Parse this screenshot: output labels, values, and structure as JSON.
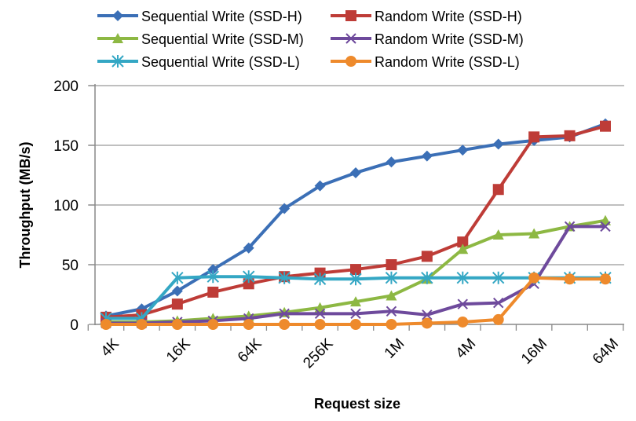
{
  "chart_data": {
    "type": "line",
    "title": "",
    "xlabel": "Request size",
    "ylabel": "Throughput (MB/s)",
    "ylim": [
      0,
      200
    ],
    "yticks": [
      "0",
      "50",
      "100",
      "150",
      "200"
    ],
    "categories": [
      "4K",
      "8K",
      "16K",
      "32K",
      "64K",
      "128K",
      "256K",
      "512K",
      "1M",
      "2M",
      "4M",
      "8M",
      "16M",
      "32M",
      "64M"
    ],
    "xtick_labels": [
      "4K",
      "16K",
      "64K",
      "256K",
      "1M",
      "4M",
      "16M",
      "64M"
    ],
    "grid": "horizontal",
    "legend": "top",
    "series": [
      {
        "name": "Sequential Write (SSD-H)",
        "color": "#3b6fb6",
        "marker": "diamond",
        "values": [
          7,
          13,
          28,
          46,
          64,
          97,
          116,
          127,
          136,
          141,
          146,
          151,
          154,
          157,
          168
        ]
      },
      {
        "name": "Random Write (SSD-H)",
        "color": "#be3c37",
        "marker": "square",
        "values": [
          6,
          8,
          17,
          27,
          34,
          40,
          43,
          46,
          50,
          57,
          69,
          113,
          157,
          158,
          166
        ]
      },
      {
        "name": "Sequential Write (SSD-M)",
        "color": "#8db843",
        "marker": "triangle",
        "values": [
          2,
          2,
          3,
          5,
          7,
          10,
          14,
          19,
          24,
          38,
          63,
          75,
          76,
          82,
          87
        ]
      },
      {
        "name": "Random Write (SSD-M)",
        "color": "#6e4a9c",
        "marker": "x",
        "values": [
          1,
          1,
          2,
          3,
          5,
          9,
          9,
          9,
          11,
          8,
          17,
          18,
          34,
          82,
          82
        ]
      },
      {
        "name": "Sequential Write (SSD-L)",
        "color": "#34a7c4",
        "marker": "star",
        "values": [
          5,
          5,
          39,
          40,
          40,
          39,
          38,
          38,
          39,
          39,
          39,
          39,
          39,
          39,
          39
        ]
      },
      {
        "name": "Random Write (SSD-L)",
        "color": "#ee8a2c",
        "marker": "circle",
        "values": [
          0,
          0,
          0,
          0,
          0,
          0,
          0,
          0,
          0,
          1,
          2,
          4,
          39,
          38,
          38
        ]
      }
    ]
  }
}
